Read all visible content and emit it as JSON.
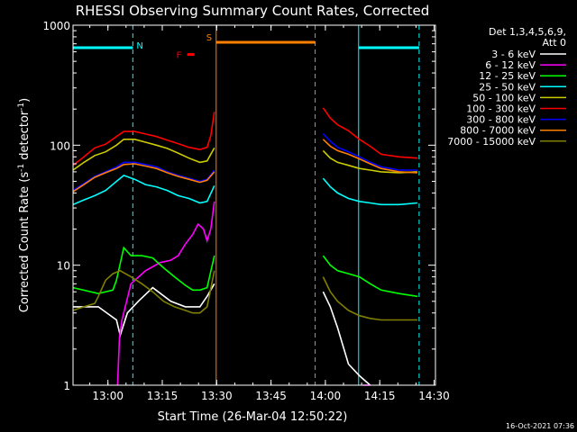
{
  "chart_data": {
    "type": "line",
    "title": "RHESSI Observing Summary Count Rates, Corrected",
    "xlabel": "Start Time (26-Mar-04 12:50:22)",
    "ylabel_main": "Corrected Count Rate (s",
    "ylabel_sup1": "-1",
    "ylabel_mid": " detector",
    "ylabel_sup2": "-1",
    "ylabel_end": ")",
    "yscale": "log",
    "ylim": [
      1,
      1000
    ],
    "x_unit": "minutes after 12:50:22",
    "xlim": [
      0,
      100
    ],
    "x_ticks": [
      {
        "label": "13:00",
        "value": 9.63
      },
      {
        "label": "13:15",
        "value": 24.63
      },
      {
        "label": "13:30",
        "value": 39.63
      },
      {
        "label": "13:45",
        "value": 54.63
      },
      {
        "label": "14:00",
        "value": 69.63
      },
      {
        "label": "14:15",
        "value": 84.63
      },
      {
        "label": "14:30",
        "value": 99.63
      }
    ],
    "y_ticks": [
      {
        "label": "1",
        "value": 1
      },
      {
        "label": "10",
        "value": 10
      },
      {
        "label": "100",
        "value": 100
      },
      {
        "label": "1000",
        "value": 1000
      }
    ],
    "legend_header": [
      "Det 1,3,4,5,6,9,",
      "Att 0"
    ],
    "legend_position": "right",
    "series": [
      {
        "name": "3 - 6 keV",
        "color": "#ffffff",
        "segments": [
          [
            [
              0,
              4.5
            ],
            [
              7,
              4.5
            ],
            [
              12,
              3.5
            ],
            [
              13,
              2.6
            ],
            [
              15,
              4.0
            ],
            [
              18,
              5.0
            ],
            [
              22,
              6.5
            ],
            [
              27,
              5.0
            ],
            [
              31,
              4.5
            ],
            [
              33,
              4.5
            ],
            [
              35,
              4.5
            ],
            [
              37,
              5.5
            ],
            [
              39,
              7.0
            ]
          ],
          [
            [
              69,
              6.0
            ],
            [
              71,
              4.5
            ],
            [
              73,
              3.0
            ],
            [
              76,
              1.5
            ],
            [
              79,
              1.2
            ],
            [
              82,
              1.0
            ]
          ]
        ]
      },
      {
        "name": "6 - 12 keV",
        "color": "#ff00ff",
        "segments": [
          [
            [
              12.3,
              1.0
            ],
            [
              12.8,
              2.5
            ],
            [
              13.5,
              3.5
            ],
            [
              16,
              7.0
            ],
            [
              20,
              9.0
            ],
            [
              24,
              10.5
            ],
            [
              27,
              11.0
            ],
            [
              29,
              12.0
            ],
            [
              31,
              15.0
            ],
            [
              33,
              18.0
            ],
            [
              34.5,
              22.0
            ],
            [
              36,
              20.0
            ],
            [
              37,
              16.0
            ],
            [
              38,
              20.0
            ],
            [
              39,
              34.0
            ]
          ],
          [
            [
              80,
              1.0
            ],
            [
              82,
              1.0
            ]
          ]
        ]
      },
      {
        "name": "12 - 25 keV",
        "color": "#00ff00",
        "segments": [
          [
            [
              0,
              6.5
            ],
            [
              7,
              5.8
            ],
            [
              11,
              6.2
            ],
            [
              12,
              7.5
            ],
            [
              14,
              14.0
            ],
            [
              16,
              12.0
            ],
            [
              19,
              12.0
            ],
            [
              22,
              11.5
            ],
            [
              25,
              9.5
            ],
            [
              28,
              8.0
            ],
            [
              31,
              6.8
            ],
            [
              33,
              6.2
            ],
            [
              35,
              6.2
            ],
            [
              37,
              6.5
            ],
            [
              39,
              12.0
            ]
          ],
          [
            [
              69,
              12.0
            ],
            [
              71,
              10.0
            ],
            [
              73,
              9.0
            ],
            [
              76,
              8.5
            ],
            [
              79,
              8.0
            ],
            [
              82,
              7.0
            ],
            [
              85,
              6.2
            ],
            [
              90,
              5.8
            ],
            [
              95,
              5.5
            ]
          ]
        ]
      },
      {
        "name": "25 - 50 keV",
        "color": "#00ffff",
        "segments": [
          [
            [
              0,
              32.0
            ],
            [
              3,
              35.0
            ],
            [
              6,
              38.0
            ],
            [
              9,
              42.0
            ],
            [
              12,
              50.0
            ],
            [
              14,
              56.0
            ],
            [
              17,
              52.0
            ],
            [
              20,
              47.0
            ],
            [
              23,
              45.0
            ],
            [
              26,
              42.0
            ],
            [
              29,
              38.0
            ],
            [
              32,
              36.0
            ],
            [
              35,
              33.0
            ],
            [
              37,
              34.0
            ],
            [
              39,
              46.0
            ]
          ],
          [
            [
              69,
              53.0
            ],
            [
              71,
              45.0
            ],
            [
              73,
              40.0
            ],
            [
              76,
              36.0
            ],
            [
              79,
              34.0
            ],
            [
              82,
              33.0
            ],
            [
              85,
              32.0
            ],
            [
              90,
              32.0
            ],
            [
              95,
              33.0
            ]
          ]
        ]
      },
      {
        "name": "50 - 100 keV",
        "color": "#cccc00",
        "segments": [
          [
            [
              0,
              62.0
            ],
            [
              3,
              72.0
            ],
            [
              6,
              82.0
            ],
            [
              9,
              88.0
            ],
            [
              12,
              100.0
            ],
            [
              14,
              112.0
            ],
            [
              17,
              112.0
            ],
            [
              20,
              106.0
            ],
            [
              23,
              100.0
            ],
            [
              26,
              94.0
            ],
            [
              29,
              86.0
            ],
            [
              32,
              78.0
            ],
            [
              35,
              72.0
            ],
            [
              37,
              74.0
            ],
            [
              39,
              95.0
            ]
          ],
          [
            [
              69,
              90.0
            ],
            [
              71,
              78.0
            ],
            [
              73,
              72.0
            ],
            [
              76,
              68.0
            ],
            [
              79,
              64.0
            ],
            [
              82,
              62.0
            ],
            [
              85,
              60.0
            ],
            [
              90,
              59.0
            ],
            [
              95,
              60.0
            ]
          ]
        ]
      },
      {
        "name": "100 - 300 keV",
        "color": "#ff0000",
        "segments": [
          [
            [
              0,
              68.0
            ],
            [
              3,
              80.0
            ],
            [
              6,
              95.0
            ],
            [
              9,
              102.0
            ],
            [
              12,
              118.0
            ],
            [
              14,
              130.0
            ],
            [
              17,
              130.0
            ],
            [
              20,
              124.0
            ],
            [
              23,
              118.0
            ],
            [
              26,
              110.0
            ],
            [
              29,
              103.0
            ],
            [
              32,
              96.0
            ],
            [
              35,
              92.0
            ],
            [
              37,
              96.0
            ],
            [
              38,
              120.0
            ],
            [
              39,
              190.0
            ]
          ],
          [
            [
              69,
              205.0
            ],
            [
              71,
              168.0
            ],
            [
              73,
              148.0
            ],
            [
              76,
              132.0
            ],
            [
              79,
              112.0
            ],
            [
              82,
              98.0
            ],
            [
              85,
              84.0
            ],
            [
              90,
              80.0
            ],
            [
              95,
              78.0
            ]
          ]
        ]
      },
      {
        "name": "300 - 800 keV",
        "color": "#0000ff",
        "segments": [
          [
            [
              0,
              42.0
            ],
            [
              3,
              48.0
            ],
            [
              6,
              55.0
            ],
            [
              9,
              60.0
            ],
            [
              12,
              66.0
            ],
            [
              14,
              72.0
            ],
            [
              17,
              72.0
            ],
            [
              20,
              69.0
            ],
            [
              23,
              66.0
            ],
            [
              26,
              60.0
            ],
            [
              29,
              56.0
            ],
            [
              32,
              53.0
            ],
            [
              35,
              50.0
            ],
            [
              37,
              52.0
            ],
            [
              39,
              62.0
            ]
          ],
          [
            [
              69,
              125.0
            ],
            [
              71,
              108.0
            ],
            [
              73,
              96.0
            ],
            [
              76,
              88.0
            ],
            [
              79,
              80.0
            ],
            [
              82,
              72.0
            ],
            [
              85,
              66.0
            ],
            [
              90,
              62.0
            ],
            [
              95,
              62.0
            ]
          ]
        ]
      },
      {
        "name": "800 - 7000 keV",
        "color": "#ff8000",
        "segments": [
          [
            [
              0,
              41.0
            ],
            [
              3,
              47.0
            ],
            [
              6,
              54.0
            ],
            [
              9,
              59.0
            ],
            [
              12,
              64.0
            ],
            [
              14,
              69.0
            ],
            [
              17,
              70.0
            ],
            [
              20,
              67.0
            ],
            [
              23,
              64.0
            ],
            [
              26,
              59.0
            ],
            [
              29,
              55.0
            ],
            [
              32,
              52.0
            ],
            [
              35,
              49.0
            ],
            [
              37,
              51.0
            ],
            [
              39,
              60.0
            ]
          ],
          [
            [
              69,
              112.0
            ],
            [
              71,
              98.0
            ],
            [
              73,
              90.0
            ],
            [
              76,
              84.0
            ],
            [
              79,
              77.0
            ],
            [
              82,
              70.0
            ],
            [
              85,
              64.0
            ],
            [
              90,
              60.0
            ],
            [
              95,
              59.0
            ]
          ]
        ]
      },
      {
        "name": "7000 - 15000 keV",
        "color": "#808000",
        "segments": [
          [
            [
              0,
              4.2
            ],
            [
              3,
              4.5
            ],
            [
              6,
              4.8
            ],
            [
              7,
              5.5
            ],
            [
              9,
              7.5
            ],
            [
              11,
              8.5
            ],
            [
              13,
              9.0
            ],
            [
              16,
              8.0
            ],
            [
              19,
              7.0
            ],
            [
              22,
              6.0
            ],
            [
              25,
              5.0
            ],
            [
              28,
              4.5
            ],
            [
              31,
              4.2
            ],
            [
              33,
              4.0
            ],
            [
              35,
              4.0
            ],
            [
              37,
              4.5
            ],
            [
              39,
              9.0
            ]
          ],
          [
            [
              69,
              8.0
            ],
            [
              71,
              6.0
            ],
            [
              73,
              5.0
            ],
            [
              76,
              4.2
            ],
            [
              79,
              3.8
            ],
            [
              82,
              3.6
            ],
            [
              85,
              3.5
            ],
            [
              90,
              3.5
            ],
            [
              95,
              3.5
            ]
          ]
        ]
      }
    ],
    "bars": [
      {
        "label": "N",
        "color": "#00ffff",
        "segments": [
          [
            0,
            16.5
          ],
          [
            78.8,
            95.5
          ]
        ],
        "level": 650
      },
      {
        "label": "S",
        "color": "#ff8000",
        "segments": [
          [
            39.5,
            66.8
          ]
        ],
        "level": 720
      },
      {
        "label": "F",
        "color": "#ff0000",
        "segments": [
          [
            31.5,
            33.5
          ]
        ],
        "level": 570
      }
    ],
    "vlines": [
      {
        "x": 16.5,
        "color": "#00ffff",
        "dashed": true
      },
      {
        "x": 78.8,
        "color": "#00ffff",
        "dashed": false
      },
      {
        "x": 95.5,
        "color": "#00ffff",
        "dashed": true
      },
      {
        "x": 39.5,
        "color": "#ff8000",
        "dashed": false
      },
      {
        "x": 66.8,
        "color": "#ff8000",
        "dashed": true
      }
    ],
    "footer_date": "16-Oct-2021 07:36"
  }
}
